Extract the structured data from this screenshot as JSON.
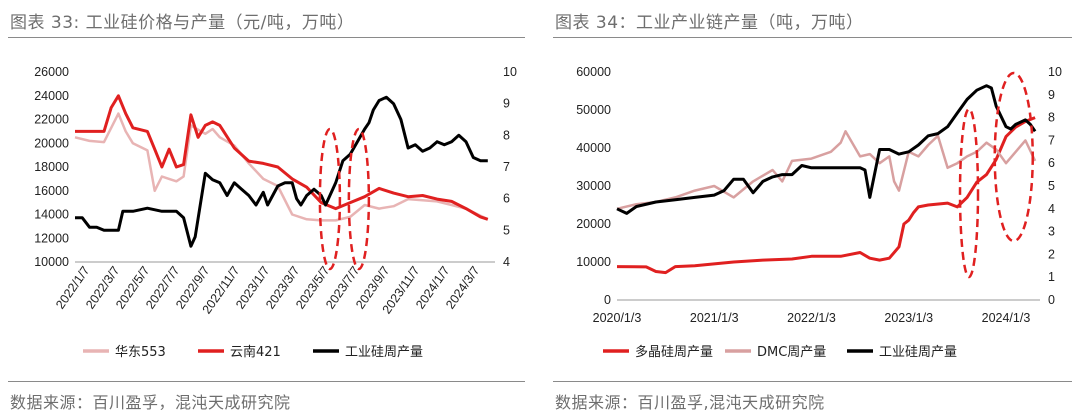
{
  "colors": {
    "title": "#6e6e6e",
    "huadong": "#e8b4b4",
    "yunnan": "#e02020",
    "silicon": "#000000",
    "dmc": "#d8a0a0",
    "poly": "#e02020",
    "ellipse": "#e02020"
  },
  "left_panel": {
    "title": "图表 33:  工业硅价格与产量（元/吨，万吨）",
    "source": "数据来源：百川盈孚，混沌天成研究院"
  },
  "right_panel": {
    "title": "图表 34：工业产业链产量（吨，万吨）",
    "source": "数据来源：百川盈孚,混沌天成研究院"
  },
  "chart_data": [
    {
      "type": "line",
      "title": "图表 33:  工业硅价格与产量（元/吨，万吨）",
      "x_tick_labels": [
        "2022/1/7",
        "2022/3/7",
        "2022/5/7",
        "2022/7/7",
        "2022/9/7",
        "2022/11/7",
        "2023/1/7",
        "2023/3/7",
        "2023/5/7",
        "2023/7/7",
        "2023/9/7",
        "2023/11/7",
        "2024/1/7",
        "2024/3/7"
      ],
      "y_left": {
        "min": 10000,
        "max": 26000,
        "ticks": [
          "10000",
          "12000",
          "14000",
          "16000",
          "18000",
          "20000",
          "22000",
          "24000",
          "26000"
        ]
      },
      "y_right": {
        "min": 4,
        "max": 10,
        "ticks": [
          "4",
          "5",
          "6",
          "7",
          "8",
          "9",
          "10"
        ]
      },
      "x_range": [
        0,
        29
      ],
      "legend_position": "bottom",
      "series": [
        {
          "name": "华东553",
          "axis": "left",
          "color": "#e8b4b4",
          "x": [
            0,
            1,
            2,
            3,
            3.5,
            4,
            5,
            5.5,
            6,
            6.5,
            7,
            7.5,
            8,
            9,
            9.5,
            10,
            11,
            12,
            13,
            14,
            15,
            16,
            17,
            18,
            19,
            20,
            21,
            22,
            23,
            24,
            25,
            26,
            27,
            28,
            28.5
          ],
          "values": [
            20500,
            20200,
            20100,
            22500,
            21000,
            20000,
            19400,
            16000,
            17200,
            17000,
            16800,
            17200,
            21500,
            20800,
            21200,
            20500,
            19800,
            18300,
            17000,
            16400,
            14000,
            13600,
            13500,
            13500,
            13800,
            14800,
            14500,
            14700,
            15300,
            15200,
            15100,
            14800,
            14500,
            13900,
            13600
          ]
        },
        {
          "name": "云南421",
          "axis": "left",
          "color": "#e02020",
          "x": [
            0,
            1,
            2,
            2.5,
            3,
            3.5,
            4,
            5,
            5.5,
            6,
            6.5,
            7,
            7.5,
            8,
            8.5,
            9,
            9.5,
            10,
            11,
            12,
            13,
            14,
            15,
            16,
            17,
            18,
            19,
            20,
            21,
            22,
            23,
            24,
            25,
            26,
            27,
            28,
            28.5
          ],
          "values": [
            21000,
            21000,
            21000,
            23000,
            24000,
            22500,
            21300,
            21000,
            19500,
            18000,
            19500,
            18000,
            18200,
            22400,
            20500,
            21500,
            21800,
            21500,
            19600,
            18500,
            18300,
            18000,
            17000,
            16300,
            15000,
            14500,
            15000,
            15500,
            16200,
            15800,
            15500,
            15600,
            15300,
            15100,
            14500,
            13800,
            13600
          ]
        },
        {
          "name": "工业硅周产量",
          "axis": "right",
          "color": "#000000",
          "x": [
            0,
            0.5,
            1,
            1.5,
            2,
            2.5,
            3,
            3.3,
            3.6,
            4,
            5,
            6,
            7,
            7.5,
            8,
            8.3,
            9,
            9.5,
            10,
            10.5,
            11,
            11.5,
            12,
            12.5,
            13,
            13.3,
            14,
            14.5,
            15,
            15.3,
            15.6,
            16,
            16.5,
            17,
            17.3,
            18,
            18.5,
            19,
            19.5,
            20,
            20.3,
            20.6,
            21,
            21.5,
            22,
            22.5,
            23,
            23.5,
            24,
            24.5,
            25,
            25.5,
            26,
            26.5,
            27,
            27.5,
            28,
            28.5
          ],
          "values": [
            5.4,
            5.4,
            5.1,
            5.1,
            5.0,
            5.0,
            5.0,
            5.6,
            5.6,
            5.6,
            5.7,
            5.6,
            5.6,
            5.4,
            4.5,
            4.8,
            6.8,
            6.6,
            6.5,
            6.1,
            6.5,
            6.3,
            6.1,
            5.8,
            6.2,
            5.8,
            6.4,
            6.5,
            6.5,
            6.0,
            5.8,
            6.1,
            6.3,
            6.1,
            5.8,
            6.5,
            7.2,
            7.4,
            7.8,
            8.2,
            8.4,
            8.8,
            9.1,
            9.2,
            9.0,
            8.5,
            7.6,
            7.7,
            7.5,
            7.6,
            7.8,
            7.7,
            7.8,
            8.0,
            7.8,
            7.3,
            7.2,
            7.2
          ]
        }
      ],
      "ellipses_at_x": [
        "2023/5/7",
        "2023/7/7"
      ]
    },
    {
      "type": "line",
      "title": "图表 34：工业产业链产量（吨，万吨）",
      "x_tick_labels": [
        "2020/1/3",
        "2021/1/3",
        "2022/1/3",
        "2023/1/3",
        "2024/1/3"
      ],
      "y_left": {
        "min": 0,
        "max": 60000,
        "ticks": [
          "0",
          "10000",
          "20000",
          "30000",
          "40000",
          "50000",
          "60000"
        ]
      },
      "y_right": {
        "min": 0,
        "max": 10,
        "ticks": [
          "0",
          "1",
          "2",
          "3",
          "4",
          "5",
          "6",
          "7",
          "8",
          "9",
          "10"
        ]
      },
      "x_range": [
        2020.0,
        2024.35
      ],
      "legend_position": "bottom",
      "series": [
        {
          "name": "多晶硅周产量",
          "axis": "left",
          "color": "#e02020",
          "x": [
            2020.0,
            2020.3,
            2020.4,
            2020.5,
            2020.6,
            2020.8,
            2021.0,
            2021.2,
            2021.5,
            2021.8,
            2022.0,
            2022.3,
            2022.5,
            2022.6,
            2022.7,
            2022.8,
            2022.9,
            2022.95,
            2023.0,
            2023.05,
            2023.1,
            2023.2,
            2023.4,
            2023.5,
            2023.6,
            2023.7,
            2023.8,
            2023.9,
            2024.0,
            2024.1,
            2024.2,
            2024.3
          ],
          "values": [
            8800,
            8700,
            7500,
            7200,
            8800,
            9000,
            9500,
            10000,
            10500,
            10800,
            11500,
            11500,
            12500,
            11000,
            10500,
            11000,
            14000,
            20000,
            21000,
            23000,
            24500,
            25000,
            25500,
            24500,
            27000,
            31000,
            33000,
            37000,
            43000,
            45500,
            47000,
            48000
          ]
        },
        {
          "name": "DMC周产量",
          "axis": "right",
          "color": "#d8a0a0",
          "x": [
            2020.0,
            2020.2,
            2020.4,
            2020.6,
            2020.8,
            2021.0,
            2021.2,
            2021.4,
            2021.6,
            2021.7,
            2021.8,
            2022.0,
            2022.2,
            2022.3,
            2022.35,
            2022.5,
            2022.6,
            2022.7,
            2022.8,
            2022.85,
            2022.9,
            2023.0,
            2023.1,
            2023.2,
            2023.3,
            2023.4,
            2023.5,
            2023.6,
            2023.7,
            2023.8,
            2023.9,
            2024.0,
            2024.1,
            2024.2,
            2024.3
          ],
          "values": [
            4.0,
            4.2,
            4.3,
            4.5,
            4.8,
            5.0,
            4.5,
            5.2,
            5.7,
            5.2,
            6.1,
            6.2,
            6.5,
            6.9,
            7.4,
            6.3,
            6.4,
            6.0,
            6.3,
            5.2,
            4.8,
            6.5,
            6.3,
            6.8,
            7.2,
            5.8,
            6.0,
            6.3,
            6.5,
            6.9,
            6.6,
            6.0,
            6.5,
            7.0,
            6.1
          ]
        },
        {
          "name": "工业硅周产量",
          "axis": "right",
          "color": "#000000",
          "x": [
            2020.0,
            2020.1,
            2020.2,
            2020.4,
            2020.6,
            2020.8,
            2021.0,
            2021.1,
            2021.2,
            2021.3,
            2021.4,
            2021.5,
            2021.6,
            2021.7,
            2021.8,
            2021.9,
            2022.0,
            2022.2,
            2022.4,
            2022.5,
            2022.55,
            2022.6,
            2022.7,
            2022.8,
            2022.9,
            2023.0,
            2023.1,
            2023.2,
            2023.3,
            2023.4,
            2023.5,
            2023.6,
            2023.7,
            2023.8,
            2023.85,
            2023.9,
            2024.0,
            2024.05,
            2024.1,
            2024.2,
            2024.25,
            2024.3
          ],
          "values": [
            4.0,
            3.8,
            4.1,
            4.3,
            4.4,
            4.5,
            4.6,
            4.8,
            5.3,
            5.3,
            4.7,
            5.2,
            5.4,
            5.5,
            5.5,
            5.9,
            5.8,
            5.8,
            5.8,
            5.8,
            5.7,
            4.5,
            6.6,
            6.6,
            6.4,
            6.5,
            6.8,
            7.2,
            7.3,
            7.6,
            8.2,
            8.8,
            9.2,
            9.4,
            9.3,
            8.5,
            7.6,
            7.5,
            7.7,
            7.9,
            7.7,
            7.4
          ]
        }
      ],
      "ellipses_at_x": [
        "2023/6",
        "2024/1"
      ]
    }
  ]
}
